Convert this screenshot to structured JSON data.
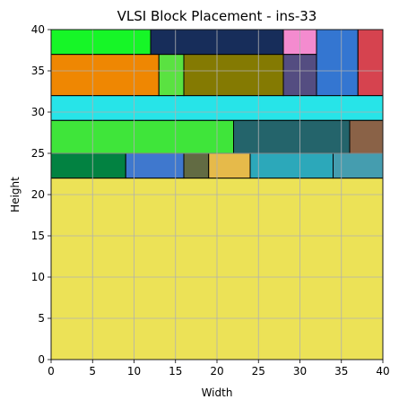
{
  "chart_data": {
    "type": "rectangles",
    "title": "VLSI Block Placement - ins-33",
    "xlabel": "Width",
    "ylabel": "Height",
    "xlim": [
      0,
      40
    ],
    "ylim": [
      0,
      40
    ],
    "xticks": [
      0,
      5,
      10,
      15,
      20,
      25,
      30,
      35,
      40
    ],
    "yticks": [
      0,
      5,
      10,
      15,
      20,
      25,
      30,
      35,
      40
    ],
    "grid": true,
    "blocks": [
      {
        "x": 0,
        "y": 0,
        "w": 40,
        "h": 22,
        "color": "#ece257"
      },
      {
        "x": 0,
        "y": 22,
        "w": 9,
        "h": 3,
        "color": "#028241"
      },
      {
        "x": 9,
        "y": 22,
        "w": 7,
        "h": 3,
        "color": "#3f78ce"
      },
      {
        "x": 16,
        "y": 22,
        "w": 3,
        "h": 3,
        "color": "#626b43"
      },
      {
        "x": 19,
        "y": 22,
        "w": 5,
        "h": 3,
        "color": "#e6ba4a"
      },
      {
        "x": 24,
        "y": 22,
        "w": 10,
        "h": 3,
        "color": "#2ca8ba"
      },
      {
        "x": 34,
        "y": 22,
        "w": 6,
        "h": 3,
        "color": "#459daf"
      },
      {
        "x": 0,
        "y": 25,
        "w": 22,
        "h": 4,
        "color": "#3fe53a"
      },
      {
        "x": 22,
        "y": 25,
        "w": 14,
        "h": 4,
        "color": "#24646b"
      },
      {
        "x": 36,
        "y": 25,
        "w": 4,
        "h": 4,
        "color": "#8a6247"
      },
      {
        "x": 0,
        "y": 29,
        "w": 40,
        "h": 3,
        "color": "#27e4e8"
      },
      {
        "x": 0,
        "y": 32,
        "w": 13,
        "h": 5,
        "color": "#ef8702"
      },
      {
        "x": 13,
        "y": 32,
        "w": 3,
        "h": 5,
        "color": "#5ae241"
      },
      {
        "x": 16,
        "y": 32,
        "w": 12,
        "h": 5,
        "color": "#847a02"
      },
      {
        "x": 28,
        "y": 32,
        "w": 4,
        "h": 5,
        "color": "#544d81"
      },
      {
        "x": 32,
        "y": 32,
        "w": 5,
        "h": 8,
        "color": "#3476d1"
      },
      {
        "x": 37,
        "y": 32,
        "w": 3,
        "h": 8,
        "color": "#d6434f"
      },
      {
        "x": 0,
        "y": 37,
        "w": 12,
        "h": 3,
        "color": "#16f627"
      },
      {
        "x": 12,
        "y": 37,
        "w": 16,
        "h": 3,
        "color": "#172d5a"
      },
      {
        "x": 28,
        "y": 37,
        "w": 4,
        "h": 3,
        "color": "#f48bcf"
      }
    ]
  }
}
